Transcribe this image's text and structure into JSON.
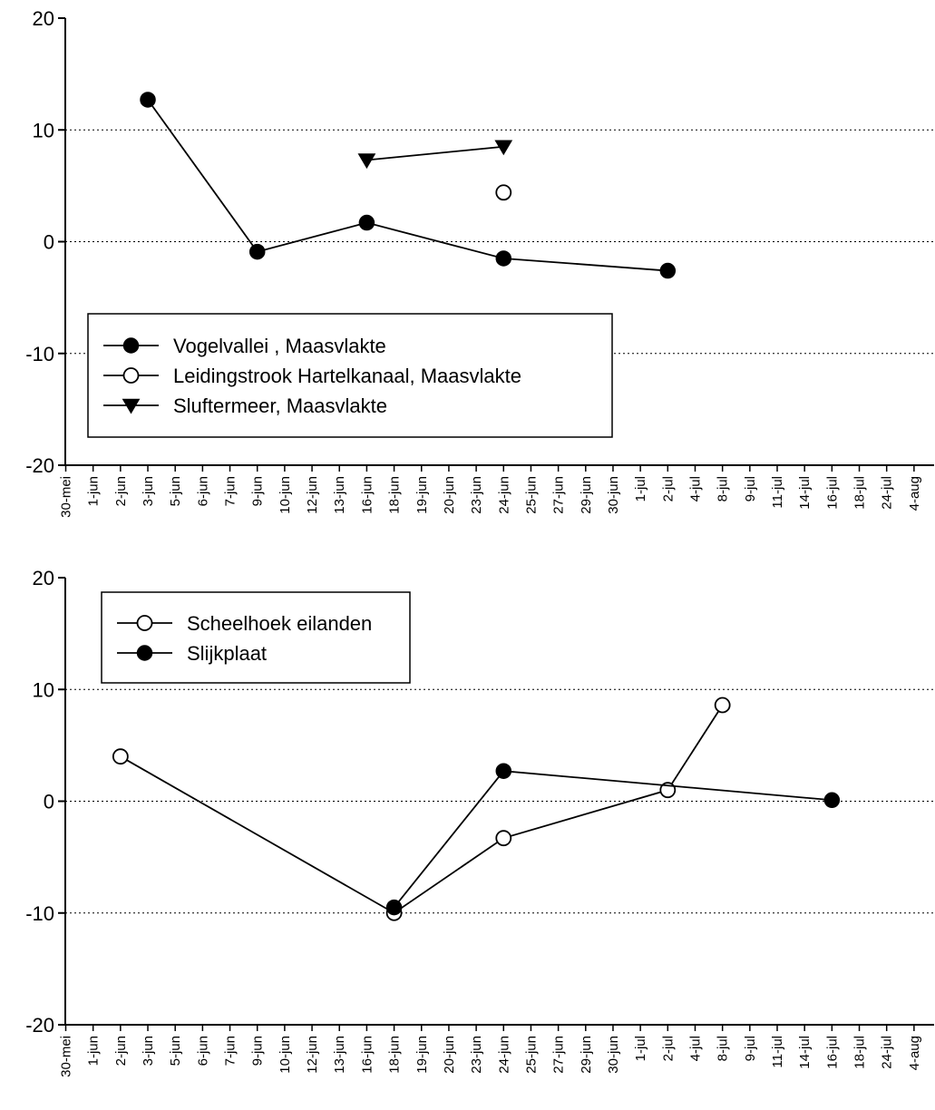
{
  "chart_data": [
    {
      "type": "line",
      "categories": [
        "30-mei",
        "1-jun",
        "2-jun",
        "3-jun",
        "5-jun",
        "6-jun",
        "7-jun",
        "9-jun",
        "10-jun",
        "12-jun",
        "13-jun",
        "16-jun",
        "18-jun",
        "19-jun",
        "20-jun",
        "23-jun",
        "24-jun",
        "25-jun",
        "27-jun",
        "29-jun",
        "30-jun",
        "1-jul",
        "2-jul",
        "4-jul",
        "8-jul",
        "9-jul",
        "11-jul",
        "14-jul",
        "16-jul",
        "18-jul",
        "24-jul",
        "4-aug"
      ],
      "ylim": [
        -20,
        20
      ],
      "yticks": [
        "20",
        "10",
        "0",
        "-10",
        "-20"
      ],
      "ytick_values": [
        20,
        10,
        0,
        -10,
        -20
      ],
      "grid": "dotted horizontal lines at 10, 0, -10",
      "legend_position": "lower-left",
      "series": [
        {
          "name": "Vogelvallei , Maasvlakte",
          "marker": "filled-circle",
          "connected": true,
          "points": [
            [
              "3-jun",
              12.7
            ],
            [
              "9-jun",
              -0.9
            ],
            [
              "16-jun",
              1.7
            ],
            [
              "24-jun",
              -1.5
            ],
            [
              "2-jul",
              -2.6
            ]
          ]
        },
        {
          "name": "Leidingstrook Hartelkanaal, Maasvlakte",
          "marker": "open-circle",
          "connected": true,
          "points": [
            [
              "24-jun",
              4.4
            ]
          ]
        },
        {
          "name": "Sluftermeer, Maasvlakte",
          "marker": "filled-triangle-down",
          "connected": true,
          "points": [
            [
              "16-jun",
              7.3
            ],
            [
              "24-jun",
              8.5
            ]
          ]
        }
      ]
    },
    {
      "type": "line",
      "categories": [
        "30-mei",
        "1-jun",
        "2-jun",
        "3-jun",
        "5-jun",
        "6-jun",
        "7-jun",
        "9-jun",
        "10-jun",
        "12-jun",
        "13-jun",
        "16-jun",
        "18-jun",
        "19-jun",
        "20-jun",
        "23-jun",
        "24-jun",
        "25-jun",
        "27-jun",
        "29-jun",
        "30-jun",
        "1-jul",
        "2-jul",
        "4-jul",
        "8-jul",
        "9-jul",
        "11-jul",
        "14-jul",
        "16-jul",
        "18-jul",
        "24-jul",
        "4-aug"
      ],
      "ylim": [
        -20,
        20
      ],
      "yticks": [
        "20",
        "10",
        "0",
        "-10",
        "-20"
      ],
      "ytick_values": [
        20,
        10,
        0,
        -10,
        -20
      ],
      "grid": "dotted horizontal lines at 10, 0, -10",
      "legend_position": "upper-left",
      "series": [
        {
          "name": "Scheelhoek eilanden",
          "marker": "open-circle",
          "connected": true,
          "points": [
            [
              "2-jun",
              4.0
            ],
            [
              "18-jun",
              -10.0
            ],
            [
              "24-jun",
              -3.3
            ],
            [
              "2-jul",
              1.0
            ],
            [
              "8-jul",
              8.6
            ]
          ]
        },
        {
          "name": "Slijkplaat",
          "marker": "filled-circle",
          "connected": true,
          "points": [
            [
              "18-jun",
              -9.5
            ],
            [
              "24-jun",
              2.7
            ],
            [
              "16-jul",
              0.1
            ]
          ]
        }
      ]
    }
  ]
}
